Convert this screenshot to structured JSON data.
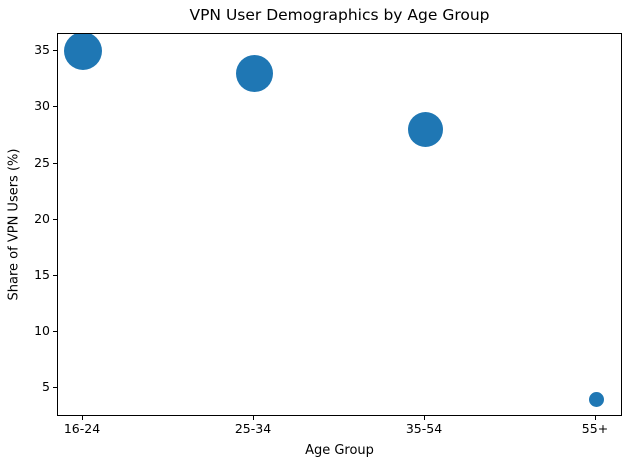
{
  "chart_data": {
    "type": "scatter",
    "title": "VPN User Demographics by Age Group",
    "xlabel": "Age Group",
    "ylabel": "Share of VPN Users (%)",
    "categories": [
      "16-24",
      "25-34",
      "35-54",
      "55+"
    ],
    "values": [
      35,
      33,
      28,
      4
    ],
    "series_name": "Share of VPN Users (%)",
    "y_ticks": [
      5,
      10,
      15,
      20,
      25,
      30,
      35
    ],
    "ylim": [
      2.45,
      36.52
    ],
    "grid": false,
    "legend_position": "none",
    "marker_color": "#1f77b4",
    "marker_radii_px": [
      19,
      18.5,
      17.5,
      7.5
    ],
    "background_color": "#ffffff",
    "axis_color": "#000000"
  }
}
